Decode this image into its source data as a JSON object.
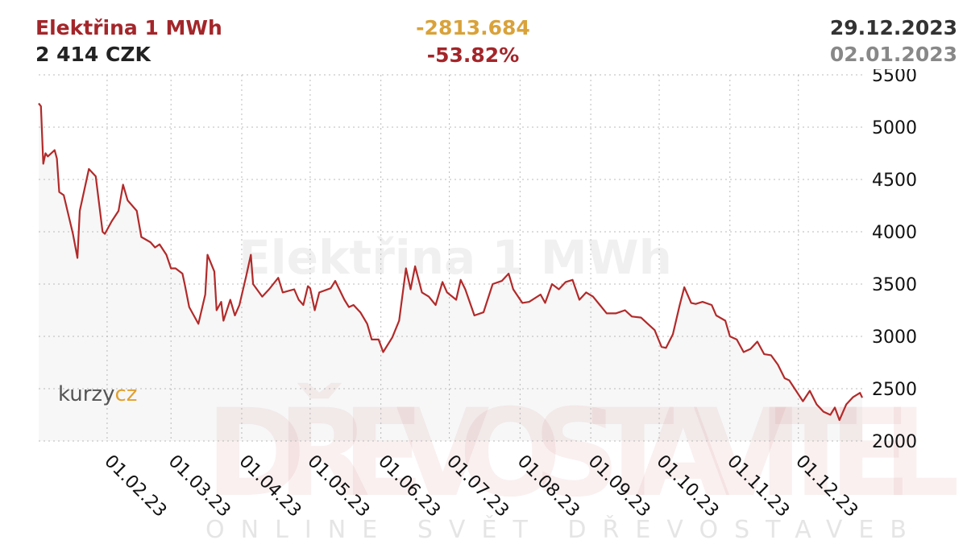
{
  "chart_data": {
    "type": "line",
    "title": "Elektřina 1 MWh",
    "last_price": "2 414 CZK",
    "change": "-2813.684",
    "change_pct": "-53.82%",
    "date_to": "29.12.2023",
    "date_from": "02.01.2023",
    "logo_left": "kurzy",
    "logo_right": "cz",
    "watermark_main": "DŘEVOSTAVITEL",
    "watermark_sub": "ONLINE SVĚT DŘEVOSTAVEB",
    "x": [
      "2023-01-02",
      "2023-01-03",
      "2023-01-04",
      "2023-01-05",
      "2023-01-06",
      "2023-01-09",
      "2023-01-10",
      "2023-01-11",
      "2023-01-13",
      "2023-01-17",
      "2023-01-19",
      "2023-01-20",
      "2023-01-24",
      "2023-01-27",
      "2023-01-30",
      "2023-01-31",
      "2023-02-03",
      "2023-02-06",
      "2023-02-08",
      "2023-02-10",
      "2023-02-14",
      "2023-02-16",
      "2023-02-20",
      "2023-02-22",
      "2023-02-24",
      "2023-02-27",
      "2023-03-01",
      "2023-03-03",
      "2023-03-06",
      "2023-03-07",
      "2023-03-09",
      "2023-03-13",
      "2023-03-16",
      "2023-03-17",
      "2023-03-20",
      "2023-03-21",
      "2023-03-23",
      "2023-03-24",
      "2023-03-27",
      "2023-03-29",
      "2023-03-31",
      "2023-04-03",
      "2023-04-05",
      "2023-04-06",
      "2023-04-10",
      "2023-04-13",
      "2023-04-17",
      "2023-04-19",
      "2023-04-24",
      "2023-04-26",
      "2023-04-28",
      "2023-04-30",
      "2023-05-01",
      "2023-05-03",
      "2023-05-05",
      "2023-05-10",
      "2023-05-12",
      "2023-05-16",
      "2023-05-18",
      "2023-05-20",
      "2023-05-23",
      "2023-05-26",
      "2023-05-28",
      "2023-05-31",
      "2023-06-02",
      "2023-06-06",
      "2023-06-09",
      "2023-06-12",
      "2023-06-14",
      "2023-06-16",
      "2023-06-19",
      "2023-06-22",
      "2023-06-25",
      "2023-06-28",
      "2023-06-30",
      "2023-07-04",
      "2023-07-06",
      "2023-07-08",
      "2023-07-12",
      "2023-07-16",
      "2023-07-20",
      "2023-07-24",
      "2023-07-27",
      "2023-07-29",
      "2023-08-02",
      "2023-08-05",
      "2023-08-10",
      "2023-08-12",
      "2023-08-15",
      "2023-08-18",
      "2023-08-21",
      "2023-08-24",
      "2023-08-27",
      "2023-08-30",
      "2023-09-02",
      "2023-09-05",
      "2023-09-08",
      "2023-09-12",
      "2023-09-16",
      "2023-09-19",
      "2023-09-23",
      "2023-09-26",
      "2023-09-29",
      "2023-10-02",
      "2023-10-04",
      "2023-10-07",
      "2023-10-10",
      "2023-10-12",
      "2023-10-15",
      "2023-10-17",
      "2023-10-20",
      "2023-10-24",
      "2023-10-26",
      "2023-10-30",
      "2023-11-01",
      "2023-11-04",
      "2023-11-07",
      "2023-11-10",
      "2023-11-13",
      "2023-11-16",
      "2023-11-19",
      "2023-11-22",
      "2023-11-25",
      "2023-11-27",
      "2023-11-30",
      "2023-12-03",
      "2023-12-06",
      "2023-12-09",
      "2023-12-12",
      "2023-12-15",
      "2023-12-17",
      "2023-12-19",
      "2023-12-22",
      "2023-12-25",
      "2023-12-28",
      "2023-12-29"
    ],
    "series": [
      {
        "name": "Elektřina 1 MWh",
        "color": "#b22a2a",
        "values": [
          5227.684,
          5200,
          4650,
          4750,
          4720,
          4780,
          4700,
          4380,
          4350,
          3980,
          3750,
          4200,
          4600,
          4530,
          4000,
          3980,
          4100,
          4200,
          4450,
          4300,
          4200,
          3950,
          3900,
          3850,
          3880,
          3780,
          3650,
          3650,
          3600,
          3500,
          3280,
          3120,
          3400,
          3780,
          3620,
          3250,
          3330,
          3150,
          3350,
          3200,
          3300,
          3580,
          3780,
          3500,
          3380,
          3450,
          3560,
          3420,
          3450,
          3350,
          3300,
          3480,
          3460,
          3250,
          3420,
          3460,
          3530,
          3350,
          3280,
          3300,
          3230,
          3120,
          2970,
          2970,
          2850,
          2990,
          3150,
          3650,
          3450,
          3670,
          3420,
          3380,
          3300,
          3520,
          3420,
          3350,
          3540,
          3450,
          3200,
          3230,
          3500,
          3530,
          3600,
          3450,
          3320,
          3330,
          3400,
          3320,
          3500,
          3450,
          3520,
          3540,
          3350,
          3420,
          3380,
          3300,
          3220,
          3220,
          3250,
          3190,
          3180,
          3120,
          3060,
          2900,
          2890,
          3020,
          3300,
          3470,
          3320,
          3310,
          3330,
          3300,
          3200,
          3150,
          3000,
          2970,
          2850,
          2880,
          2950,
          2830,
          2820,
          2730,
          2600,
          2580,
          2480,
          2380,
          2480,
          2350,
          2280,
          2250,
          2320,
          2200,
          2350,
          2420,
          2460,
          2414
        ]
      }
    ],
    "xlim": [
      "2023-01-02",
      "2023-12-29"
    ],
    "xticks": [
      {
        "value": "2023-02-01",
        "label": "01.02.23"
      },
      {
        "value": "2023-03-01",
        "label": "01.03.23"
      },
      {
        "value": "2023-04-01",
        "label": "01.04.23"
      },
      {
        "value": "2023-05-01",
        "label": "01.05.23"
      },
      {
        "value": "2023-06-01",
        "label": "01.06.23"
      },
      {
        "value": "2023-07-01",
        "label": "01.07.23"
      },
      {
        "value": "2023-08-01",
        "label": "01.08.23"
      },
      {
        "value": "2023-09-01",
        "label": "01.09.23"
      },
      {
        "value": "2023-10-01",
        "label": "01.10.23"
      },
      {
        "value": "2023-11-01",
        "label": "01.11.23"
      },
      {
        "value": "2023-12-01",
        "label": "01.12.23"
      }
    ],
    "ylim": [
      2000,
      5500
    ],
    "yticks": [
      2000,
      2500,
      3000,
      3500,
      4000,
      4500,
      5000,
      5500
    ],
    "grid": true
  }
}
